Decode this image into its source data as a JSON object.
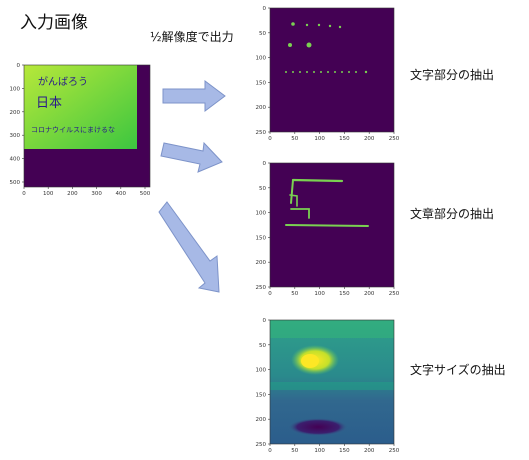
{
  "diagram": {
    "input_title": "入力画像",
    "resolution_note": "½解像度で出力",
    "outputs": [
      {
        "label": "文字部分の抽出"
      },
      {
        "label": "文章部分の抽出"
      },
      {
        "label": "文字サイズの抽出"
      }
    ]
  },
  "input_image": {
    "handwriting": [
      "がんばろう",
      "日本",
      "コロナウイルスにまけるな"
    ],
    "xticks": [
      "0",
      "100",
      "200",
      "300",
      "400",
      "500"
    ],
    "yticks": [
      "0",
      "100",
      "200",
      "300",
      "400",
      "500"
    ]
  },
  "plot_ticks": {
    "x": [
      "0",
      "50",
      "100",
      "150",
      "200",
      "250"
    ],
    "y": [
      "0",
      "50",
      "100",
      "150",
      "200",
      "250"
    ]
  },
  "colors": {
    "background": "#440154",
    "mark": "#7ad151",
    "green_bright": "#4fc83f",
    "yellow": "#fde725",
    "teal": "#2a8a8c",
    "arrow": "#a7b9e6",
    "arrow_edge": "#7d93c9"
  }
}
